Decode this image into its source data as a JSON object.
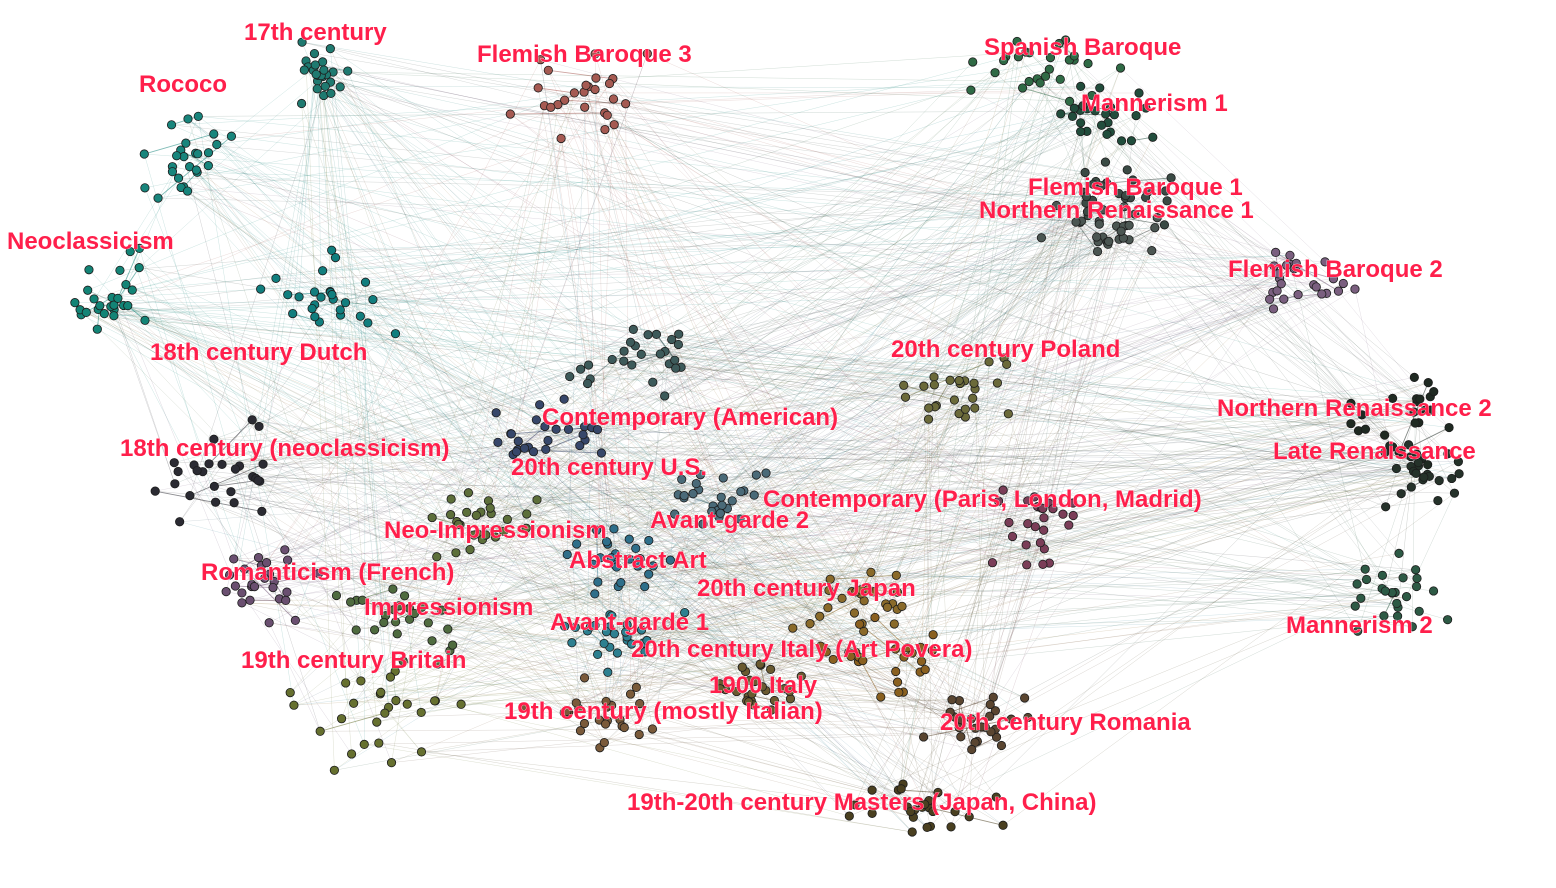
{
  "graph": {
    "clusters": [
      {
        "id": "17th-century",
        "label": "17th century",
        "color": "#1f7a70"
      },
      {
        "id": "flemish-baroque-3",
        "label": "Flemish Baroque 3",
        "color": "#a55a52"
      },
      {
        "id": "spanish-baroque",
        "label": "Spanish Baroque",
        "color": "#2f6a45"
      },
      {
        "id": "rococo",
        "label": "Rococo",
        "color": "#18857c"
      },
      {
        "id": "mannerism-1",
        "label": "Mannerism 1",
        "color": "#214d3c"
      },
      {
        "id": "flemish-baroque-1",
        "label": "Flemish Baroque 1",
        "color": "#3a4a44"
      },
      {
        "id": "northern-renaissance-1",
        "label": "Northern Renaissance 1",
        "color": "#4b5652"
      },
      {
        "id": "neoclassicism",
        "label": "Neoclassicism",
        "color": "#138476"
      },
      {
        "id": "flemish-baroque-2",
        "label": "Flemish Baroque 2",
        "color": "#7a5f7f"
      },
      {
        "id": "18th-century-dutch",
        "label": "18th century Dutch",
        "color": "#117e7e"
      },
      {
        "id": "20th-century-poland",
        "label": "20th century Poland",
        "color": "#6b6a3a"
      },
      {
        "id": "northern-renaissance-2",
        "label": "Northern Renaissance 2",
        "color": "#1f2a22"
      },
      {
        "id": "contemporary-american",
        "label": "Contemporary (American)",
        "color": "#3d5a5a"
      },
      {
        "id": "18th-century-neoclassicism",
        "label": "18th century (neoclassicism)",
        "color": "#2b2b33"
      },
      {
        "id": "late-renaissance",
        "label": "Late Renaissance",
        "color": "#25322a"
      },
      {
        "id": "20th-century-us",
        "label": "20th century U.S.",
        "color": "#37476a"
      },
      {
        "id": "contemporary-paris",
        "label": "Contemporary (Paris, London, Madrid)",
        "color": "#7b3e58"
      },
      {
        "id": "neo-impressionism",
        "label": "Neo-Impressionism",
        "color": "#5d6f3a"
      },
      {
        "id": "avant-garde-2",
        "label": "Avant-garde 2",
        "color": "#4a6a78"
      },
      {
        "id": "abstract-art",
        "label": "Abstract Art",
        "color": "#2f6f8a"
      },
      {
        "id": "romanticism-french",
        "label": "Romanticism (French)",
        "color": "#6a4f70"
      },
      {
        "id": "20th-century-japan",
        "label": "20th century Japan",
        "color": "#8a6a2a"
      },
      {
        "id": "impressionism",
        "label": "Impressionism",
        "color": "#4f6b3f"
      },
      {
        "id": "avant-garde-1",
        "label": "Avant-garde 1",
        "color": "#2d8090"
      },
      {
        "id": "mannerism-2",
        "label": "Mannerism 2",
        "color": "#2d5a45"
      },
      {
        "id": "20th-century-italy",
        "label": "20th century Italy (Art Povera)",
        "color": "#8a6020"
      },
      {
        "id": "19th-century-britain",
        "label": "19th century Britain",
        "color": "#66702f"
      },
      {
        "id": "1900-italy",
        "label": "1900 Italy",
        "color": "#6a5a30"
      },
      {
        "id": "19th-century-italian",
        "label": "19th century (mostly Italian)",
        "color": "#7a5a3a"
      },
      {
        "id": "20th-century-romania",
        "label": "20th century Romania",
        "color": "#5a4530"
      },
      {
        "id": "19th-20th-masters",
        "label": "19th-20th century Masters (Japan, China)",
        "color": "#4a4020"
      }
    ]
  }
}
